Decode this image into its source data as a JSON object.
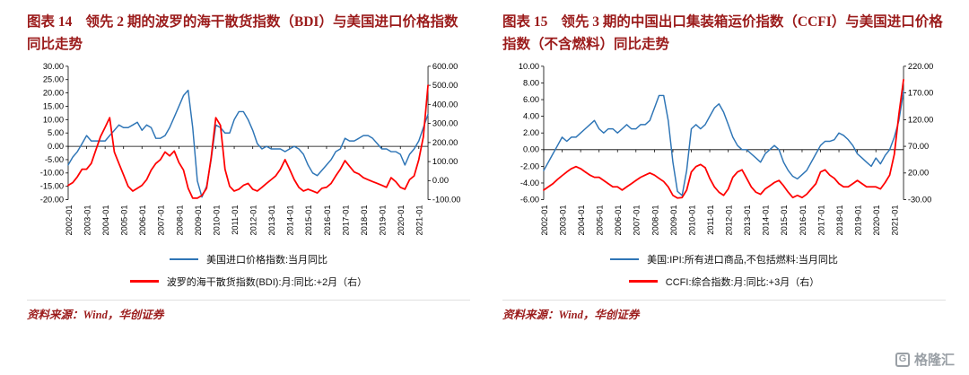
{
  "colors": {
    "title": "#9b1b1b",
    "source": "#9b1b1b",
    "blue": "#2E75B6",
    "red": "#FF0000"
  },
  "figures": [
    {
      "label": "图表 14",
      "title": "领先 2 期的波罗的海干散货指数（BDI）与美国进口价格指数同比走势",
      "source": "资料来源：Wind，华创证券"
    },
    {
      "label": "图表 15",
      "title": "领先 3 期的中国出口集装箱运价指数（CCFI）与美国进口价格指数（不含燃料）同比走势",
      "source": "资料来源：Wind，华创证券"
    }
  ],
  "watermark": {
    "icon": "G",
    "text": "格隆汇"
  },
  "chart_data": [
    {
      "type": "line",
      "title": "领先2期的波罗的海干散货指数（BDI）与美国进口价格指数同比走势",
      "x_frequency": "quarterly",
      "x_range": [
        "2002-01",
        "2021-07"
      ],
      "x_tick_labels": [
        "2002-01",
        "2003-01",
        "2004-01",
        "2005-01",
        "2006-01",
        "2007-01",
        "2008-01",
        "2009-01",
        "2010-01",
        "2011-01",
        "2012-01",
        "2013-01",
        "2014-01",
        "2015-01",
        "2016-01",
        "2017-01",
        "2018-01",
        "2019-01",
        "2020-01",
        "2021-01"
      ],
      "left_axis": {
        "min": -20,
        "max": 30,
        "ticks": [
          "30.00",
          "25.00",
          "20.00",
          "15.00",
          "10.00",
          "5.00",
          "0.00",
          "-5.00",
          "-10.00",
          "-15.00",
          "-20.00"
        ]
      },
      "right_axis": {
        "min": -100,
        "max": 600,
        "ticks": [
          "600.00",
          "500.00",
          "400.00",
          "300.00",
          "200.00",
          "100.00",
          "0.00",
          "-100.00"
        ]
      },
      "legend_position": "bottom",
      "grid": false,
      "series": [
        {
          "id": "us-import-price-line",
          "name": "美国进口价格指数:当月同比",
          "axis": "left",
          "color": "#2E75B6",
          "values": [
            -7,
            -4,
            -2,
            1,
            4,
            2,
            2,
            2,
            2,
            4,
            6,
            8,
            7,
            7,
            8,
            9,
            6,
            8,
            7,
            3,
            3,
            4,
            7,
            11,
            15,
            19,
            21,
            7,
            -13,
            -19,
            -15,
            -5,
            8,
            7,
            5,
            5,
            10,
            13,
            13,
            10,
            6,
            1,
            -1,
            0,
            -1,
            -1,
            -1,
            -2,
            -1,
            0,
            -1,
            -3,
            -7,
            -10,
            -11,
            -9,
            -7,
            -5,
            -2,
            -1,
            3,
            2,
            2,
            3,
            4,
            4,
            3,
            1,
            -1,
            -1,
            -2,
            -2,
            -3,
            -7,
            -3,
            -1,
            2,
            7,
            12
          ]
        },
        {
          "id": "bdi-line",
          "name": "波罗的海干散货指数(BDI):月:同比:+2月（右）",
          "axis": "right",
          "color": "#FF0000",
          "values": [
            -25,
            -10,
            20,
            60,
            60,
            90,
            160,
            230,
            280,
            330,
            150,
            90,
            30,
            -30,
            -55,
            -40,
            -25,
            5,
            55,
            90,
            110,
            150,
            130,
            155,
            95,
            55,
            -40,
            -92,
            -92,
            -78,
            -40,
            120,
            330,
            290,
            60,
            -30,
            -55,
            -45,
            -25,
            -15,
            -45,
            -55,
            -35,
            -15,
            5,
            25,
            60,
            110,
            60,
            5,
            -35,
            -55,
            -45,
            -55,
            -65,
            -40,
            -35,
            -15,
            25,
            60,
            105,
            75,
            45,
            35,
            15,
            5,
            -5,
            -15,
            -25,
            -35,
            15,
            -5,
            -35,
            -45,
            5,
            25,
            110,
            230,
            500
          ]
        }
      ]
    },
    {
      "type": "line",
      "title": "领先3期的中国出口集装箱运价指数（CCFI）与美国进口价格指数（不含燃料）同比走势",
      "x_frequency": "quarterly",
      "x_range": [
        "2002-01",
        "2021-07"
      ],
      "x_tick_labels": [
        "2002-01",
        "2003-01",
        "2004-01",
        "2005-01",
        "2006-01",
        "2007-01",
        "2008-01",
        "2009-01",
        "2010-01",
        "2011-01",
        "2012-01",
        "2013-01",
        "2014-01",
        "2015-01",
        "2016-01",
        "2017-01",
        "2018-01",
        "2019-01",
        "2020-01",
        "2021-01"
      ],
      "left_axis": {
        "min": -6,
        "max": 10,
        "ticks": [
          "10.00",
          "8.00",
          "6.00",
          "4.00",
          "2.00",
          "0.00",
          "-2.00",
          "-4.00",
          "-6.00"
        ]
      },
      "right_axis": {
        "min": -30,
        "max": 220,
        "ticks": [
          "220.00",
          "170.00",
          "120.00",
          "70.00",
          "20.00",
          "-30.00"
        ]
      },
      "legend_position": "bottom",
      "grid": false,
      "series": [
        {
          "id": "us-ipi-ex-fuel-line",
          "name": "美国:IPI:所有进口商品,不包括燃料:当月同比",
          "axis": "left",
          "color": "#2E75B6",
          "values": [
            -2.5,
            -1.5,
            -0.5,
            0.5,
            1.5,
            1,
            1.5,
            1.5,
            2,
            2.5,
            3,
            3.5,
            2.5,
            2,
            2.5,
            2.5,
            2,
            2.5,
            3,
            2.5,
            2.5,
            3,
            3,
            3.5,
            5,
            6.5,
            6.5,
            3.5,
            -1.5,
            -5,
            -5.5,
            -2.5,
            2.5,
            3,
            2.5,
            3,
            4,
            5,
            5.5,
            4.5,
            3,
            1.5,
            0.5,
            0,
            0,
            -0.5,
            -1,
            -1.5,
            -0.5,
            0,
            0.5,
            0,
            -1.5,
            -2.5,
            -3.2,
            -3.5,
            -3,
            -2.5,
            -1.5,
            -0.5,
            0.5,
            1,
            1,
            1.2,
            2,
            1.7,
            1.2,
            0.5,
            -0.5,
            -1,
            -1.5,
            -2,
            -1,
            -1.7,
            -0.7,
            0,
            1.5,
            3.5,
            7
          ]
        },
        {
          "id": "ccfi-line",
          "name": "CCFI:综合指数:月:同比:+3月（右）",
          "axis": "right",
          "color": "#FF0000",
          "values": [
            -12,
            -6,
            0,
            8,
            15,
            22,
            28,
            32,
            28,
            22,
            16,
            12,
            12,
            6,
            0,
            -6,
            -6,
            -12,
            -6,
            0,
            6,
            12,
            16,
            20,
            16,
            10,
            4,
            -6,
            -22,
            -27,
            -26,
            -12,
            22,
            32,
            36,
            30,
            10,
            -6,
            -16,
            -22,
            -10,
            12,
            22,
            26,
            10,
            -6,
            -16,
            -20,
            -10,
            -4,
            2,
            6,
            -4,
            -16,
            -26,
            -22,
            -26,
            -20,
            -10,
            0,
            22,
            26,
            16,
            10,
            0,
            -6,
            -6,
            0,
            6,
            0,
            -6,
            -6,
            -6,
            -10,
            2,
            16,
            55,
            130,
            195
          ]
        }
      ]
    }
  ]
}
